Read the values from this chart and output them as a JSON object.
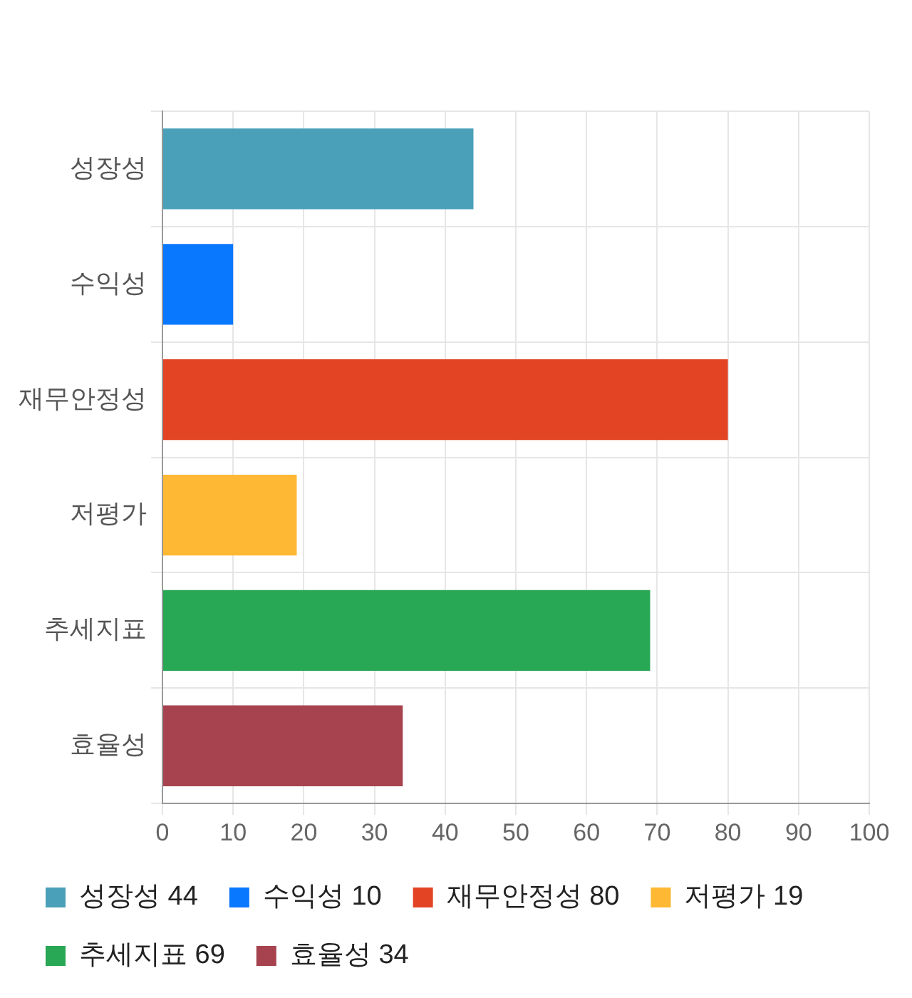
{
  "chart_data": {
    "type": "bar",
    "orientation": "horizontal",
    "stacked": true,
    "categories": [
      "성장성",
      "수익성",
      "재무안정성",
      "저평가",
      "추세지표",
      "효율성"
    ],
    "series": [
      {
        "name": "성장성 44",
        "color": "#4aa0b9",
        "values": [
          44,
          null,
          null,
          null,
          null,
          null
        ]
      },
      {
        "name": "수익성 10",
        "color": "#0a77ff",
        "values": [
          null,
          10,
          null,
          null,
          null,
          null
        ]
      },
      {
        "name": "재무안정성 80",
        "color": "#e24424",
        "values": [
          null,
          null,
          80,
          null,
          null,
          null
        ]
      },
      {
        "name": "저평가 19",
        "color": "#ffb833",
        "values": [
          null,
          null,
          null,
          19,
          null,
          null
        ]
      },
      {
        "name": "추세지표 69",
        "color": "#28a754",
        "values": [
          null,
          null,
          null,
          null,
          69,
          null
        ]
      },
      {
        "name": "효율성 34",
        "color": "#a6434f",
        "values": [
          null,
          null,
          null,
          null,
          null,
          34
        ]
      }
    ],
    "xlim": [
      0,
      100
    ],
    "xticks": [
      0,
      10,
      20,
      30,
      40,
      50,
      60,
      70,
      80,
      90,
      100
    ],
    "grid": true,
    "legend": "bottom"
  }
}
